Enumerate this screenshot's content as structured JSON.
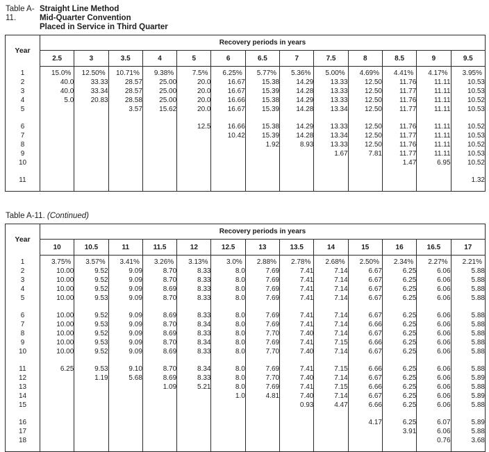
{
  "document": {
    "table1": {
      "label": "Table A-11.",
      "title_lines": [
        "Straight Line Method",
        "Mid-Quarter Convention",
        "Placed in Service in Third Quarter"
      ],
      "year_header": "Year",
      "group_header": "Recovery periods in years",
      "columns": [
        "2.5",
        "3",
        "3.5",
        "4",
        "5",
        "6",
        "6.5",
        "7",
        "7.5",
        "8",
        "8.5",
        "9",
        "9.5"
      ],
      "row_groups": [
        [
          {
            "year": "1",
            "values": [
              "15.0%",
              "12.50%",
              "10.71%",
              "9.38%",
              "7.5%",
              "6.25%",
              "5.77%",
              "5.36%",
              "5.00%",
              "4.69%",
              "4.41%",
              "4.17%",
              "3.95%"
            ]
          },
          {
            "year": "2",
            "values": [
              "40.0",
              "33.33",
              "28.57",
              "25.00",
              "20.0",
              "16.67",
              "15.38",
              "14.29",
              "13.33",
              "12.50",
              "11.76",
              "11.11",
              "10.53"
            ]
          },
          {
            "year": "3",
            "values": [
              "40.0",
              "33.34",
              "28.57",
              "25.00",
              "20.0",
              "16.67",
              "15.39",
              "14.28",
              "13.33",
              "12.50",
              "11.77",
              "11.11",
              "10.53"
            ]
          },
          {
            "year": "4",
            "values": [
              "5.0",
              "20.83",
              "28.58",
              "25.00",
              "20.0",
              "16.66",
              "15.38",
              "14.29",
              "13.33",
              "12.50",
              "11.76",
              "11.11",
              "10.52"
            ]
          },
          {
            "year": "5",
            "values": [
              "",
              "",
              "3.57",
              "15.62",
              "20.0",
              "16.67",
              "15.39",
              "14.28",
              "13.34",
              "12.50",
              "11.77",
              "11.11",
              "10.53"
            ]
          }
        ],
        [
          {
            "year": "6",
            "values": [
              "",
              "",
              "",
              "",
              "12.5",
              "16.66",
              "15.38",
              "14.29",
              "13.33",
              "12.50",
              "11.76",
              "11.11",
              "10.52"
            ]
          },
          {
            "year": "7",
            "values": [
              "",
              "",
              "",
              "",
              "",
              "10.42",
              "15.39",
              "14.28",
              "13.34",
              "12.50",
              "11.77",
              "11.11",
              "10.53"
            ]
          },
          {
            "year": "8",
            "values": [
              "",
              "",
              "",
              "",
              "",
              "",
              "1.92",
              "8.93",
              "13.33",
              "12.50",
              "11.76",
              "11.11",
              "10.52"
            ]
          },
          {
            "year": "9",
            "values": [
              "",
              "",
              "",
              "",
              "",
              "",
              "",
              "",
              "1.67",
              "7.81",
              "11.77",
              "11.11",
              "10.53"
            ]
          },
          {
            "year": "10",
            "values": [
              "",
              "",
              "",
              "",
              "",
              "",
              "",
              "",
              "",
              "",
              "1.47",
              "6.95",
              "10.52"
            ]
          }
        ],
        [
          {
            "year": "11",
            "values": [
              "",
              "",
              "",
              "",
              "",
              "",
              "",
              "",
              "",
              "",
              "",
              "",
              "1.32"
            ]
          }
        ]
      ]
    },
    "table2": {
      "label": "Table A-11.",
      "subtitle": "(Continued)",
      "year_header": "Year",
      "group_header": "Recovery periods in years",
      "columns": [
        "10",
        "10.5",
        "11",
        "11.5",
        "12",
        "12.5",
        "13",
        "13.5",
        "14",
        "15",
        "16",
        "16.5",
        "17"
      ],
      "row_groups": [
        [
          {
            "year": "1",
            "values": [
              "3.75%",
              "3.57%",
              "3.41%",
              "3.26%",
              "3.13%",
              "3.0%",
              "2.88%",
              "2.78%",
              "2.68%",
              "2.50%",
              "2.34%",
              "2.27%",
              "2.21%"
            ]
          },
          {
            "year": "2",
            "values": [
              "10.00",
              "9.52",
              "9.09",
              "8.70",
              "8.33",
              "8.0",
              "7.69",
              "7.41",
              "7.14",
              "6.67",
              "6.25",
              "6.06",
              "5.88"
            ]
          },
          {
            "year": "3",
            "values": [
              "10.00",
              "9.52",
              "9.09",
              "8.70",
              "8.33",
              "8.0",
              "7.69",
              "7.41",
              "7.14",
              "6.67",
              "6.25",
              "6.06",
              "5.88"
            ]
          },
          {
            "year": "4",
            "values": [
              "10.00",
              "9.52",
              "9.09",
              "8.69",
              "8.33",
              "8.0",
              "7.69",
              "7.41",
              "7.14",
              "6.67",
              "6.25",
              "6.06",
              "5.88"
            ]
          },
          {
            "year": "5",
            "values": [
              "10.00",
              "9.53",
              "9.09",
              "8.70",
              "8.33",
              "8.0",
              "7.69",
              "7.41",
              "7.14",
              "6.67",
              "6.25",
              "6.06",
              "5.88"
            ]
          }
        ],
        [
          {
            "year": "6",
            "values": [
              "10.00",
              "9.52",
              "9.09",
              "8.69",
              "8.33",
              "8.0",
              "7.69",
              "7.41",
              "7.14",
              "6.67",
              "6.25",
              "6.06",
              "5.88"
            ]
          },
          {
            "year": "7",
            "values": [
              "10.00",
              "9.53",
              "9.09",
              "8.70",
              "8.34",
              "8.0",
              "7.69",
              "7.41",
              "7.14",
              "6.66",
              "6.25",
              "6.06",
              "5.88"
            ]
          },
          {
            "year": "8",
            "values": [
              "10.00",
              "9.52",
              "9.09",
              "8.69",
              "8.33",
              "8.0",
              "7.70",
              "7.40",
              "7.14",
              "6.67",
              "6.25",
              "6.06",
              "5.88"
            ]
          },
          {
            "year": "9",
            "values": [
              "10.00",
              "9.53",
              "9.09",
              "8.70",
              "8.34",
              "8.0",
              "7.69",
              "7.41",
              "7.15",
              "6.66",
              "6.25",
              "6.06",
              "5.88"
            ]
          },
          {
            "year": "10",
            "values": [
              "10.00",
              "9.52",
              "9.09",
              "8.69",
              "8.33",
              "8.0",
              "7.70",
              "7.40",
              "7.14",
              "6.67",
              "6.25",
              "6.06",
              "5.88"
            ]
          }
        ],
        [
          {
            "year": "11",
            "values": [
              "6.25",
              "9.53",
              "9.10",
              "8.70",
              "8.34",
              "8.0",
              "7.69",
              "7.41",
              "7.15",
              "6.66",
              "6.25",
              "6.06",
              "5.88"
            ]
          },
          {
            "year": "12",
            "values": [
              "",
              "1.19",
              "5.68",
              "8.69",
              "8.33",
              "8.0",
              "7.70",
              "7.40",
              "7.14",
              "6.67",
              "6.25",
              "6.06",
              "5.89"
            ]
          },
          {
            "year": "13",
            "values": [
              "",
              "",
              "",
              "1.09",
              "5.21",
              "8.0",
              "7.69",
              "7.41",
              "7.15",
              "6.66",
              "6.25",
              "6.06",
              "5.88"
            ]
          },
          {
            "year": "14",
            "values": [
              "",
              "",
              "",
              "",
              "",
              "1.0",
              "4.81",
              "7.40",
              "7.14",
              "6.67",
              "6.25",
              "6.06",
              "5.89"
            ]
          },
          {
            "year": "15",
            "values": [
              "",
              "",
              "",
              "",
              "",
              "",
              "",
              "0.93",
              "4.47",
              "6.66",
              "6.25",
              "6.06",
              "5.88"
            ]
          }
        ],
        [
          {
            "year": "16",
            "values": [
              "",
              "",
              "",
              "",
              "",
              "",
              "",
              "",
              "",
              "4.17",
              "6.25",
              "6.07",
              "5.89"
            ]
          },
          {
            "year": "17",
            "values": [
              "",
              "",
              "",
              "",
              "",
              "",
              "",
              "",
              "",
              "",
              "3.91",
              "6.06",
              "5.88"
            ]
          },
          {
            "year": "18",
            "values": [
              "",
              "",
              "",
              "",
              "",
              "",
              "",
              "",
              "",
              "",
              "",
              "0.76",
              "3.68"
            ]
          }
        ]
      ]
    }
  }
}
